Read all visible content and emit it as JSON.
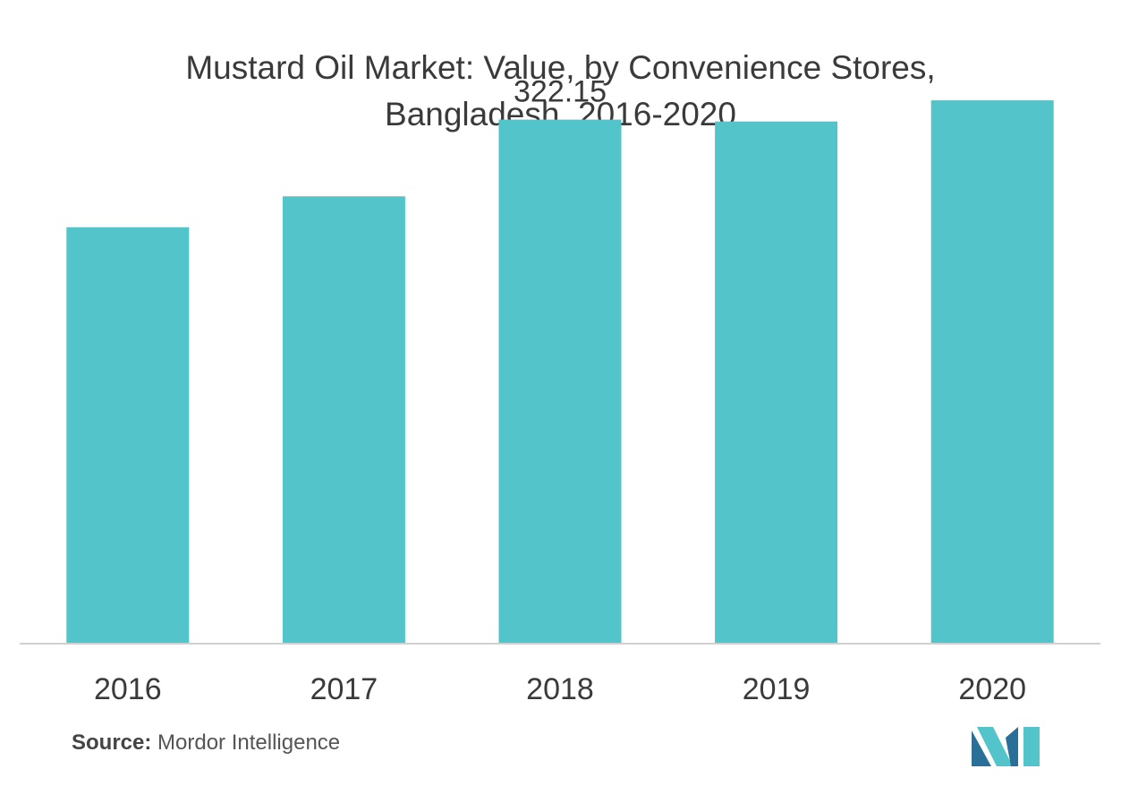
{
  "title_line1": "Mustard Oil Market: Value, by Convenience Stores,",
  "title_line2": "Bangladesh, 2016-2020",
  "source_label": "Source:",
  "source_value": "Mordor Intelligence",
  "colors": {
    "bar": "#53c4c9",
    "axis": "#d0d0d0",
    "text": "#3a3a3a",
    "logo_dark": "#2a6f97",
    "logo_light": "#53c4c9"
  },
  "logo_icon": "mordor-intelligence-logo-icon",
  "chart_data": {
    "type": "bar",
    "categories": [
      "2016",
      "2017",
      "2018",
      "2019",
      "2020"
    ],
    "values": [
      256,
      275,
      322.15,
      321,
      334
    ],
    "data_labels": [
      "",
      "",
      "322.15",
      "",
      ""
    ],
    "title": "Mustard Oil Market: Value, by Convenience Stores, Bangladesh, 2016-2020",
    "xlabel": "",
    "ylabel": "",
    "ylim": [
      0,
      350
    ],
    "grid": false,
    "legend": "none"
  }
}
